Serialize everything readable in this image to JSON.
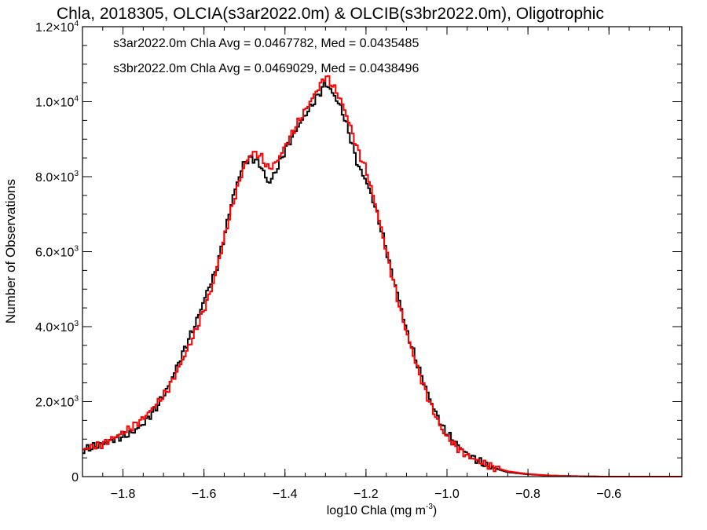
{
  "chart_data": {
    "type": "line",
    "title": "Chla, 2018305, OLCIA(s3ar2022.0m) & OLCIB(s3br2022.0m), Oligotrophic",
    "xlabel": {
      "main": "log10 Chla (mg m",
      "sup": "-3",
      "tail": ")"
    },
    "ylabel": "Number of Observations",
    "xlim": [
      -1.9,
      -0.42
    ],
    "ylim": [
      0,
      12000
    ],
    "x_ticks": [
      {
        "value": -1.8,
        "label": "−1.8"
      },
      {
        "value": -1.6,
        "label": "−1.6"
      },
      {
        "value": -1.4,
        "label": "−1.4"
      },
      {
        "value": -1.2,
        "label": "−1.2"
      },
      {
        "value": -1.0,
        "label": "−1.0"
      },
      {
        "value": -0.8,
        "label": "−0.8"
      },
      {
        "value": -0.6,
        "label": "−0.6"
      }
    ],
    "y_ticks": [
      {
        "value": 0,
        "label": "0",
        "sup": ""
      },
      {
        "value": 2000,
        "label": "2.0×10",
        "sup": "3"
      },
      {
        "value": 4000,
        "label": "4.0×10",
        "sup": "3"
      },
      {
        "value": 6000,
        "label": "6.0×10",
        "sup": "3"
      },
      {
        "value": 8000,
        "label": "8.0×10",
        "sup": "3"
      },
      {
        "value": 10000,
        "label": "1.0×10",
        "sup": "4"
      },
      {
        "value": 12000,
        "label": "1.2×10",
        "sup": "4"
      }
    ],
    "grid": false,
    "series": [
      {
        "name": "s3ar2022.0m",
        "color": "#000000",
        "legend_text": "s3ar2022.0m Chla Avg = 0.0467782, Med = 0.0435485",
        "points": [
          [
            -1.9,
            700
          ],
          [
            -1.85,
            880
          ],
          [
            -1.82,
            1000
          ],
          [
            -1.78,
            1150
          ],
          [
            -1.75,
            1400
          ],
          [
            -1.72,
            1800
          ],
          [
            -1.69,
            2350
          ],
          [
            -1.66,
            3100
          ],
          [
            -1.64,
            3600
          ],
          [
            -1.62,
            4100
          ],
          [
            -1.6,
            4700
          ],
          [
            -1.59,
            5000
          ],
          [
            -1.57,
            5500
          ],
          [
            -1.55,
            6400
          ],
          [
            -1.53,
            7400
          ],
          [
            -1.51,
            8100
          ],
          [
            -1.5,
            8400
          ],
          [
            -1.48,
            8500
          ],
          [
            -1.46,
            8300
          ],
          [
            -1.44,
            7800
          ],
          [
            -1.42,
            8200
          ],
          [
            -1.4,
            8700
          ],
          [
            -1.37,
            9300
          ],
          [
            -1.34,
            9800
          ],
          [
            -1.31,
            10300
          ],
          [
            -1.3,
            10500
          ],
          [
            -1.28,
            10200
          ],
          [
            -1.26,
            9800
          ],
          [
            -1.24,
            9100
          ],
          [
            -1.22,
            8300
          ],
          [
            -1.2,
            7900
          ],
          [
            -1.18,
            7300
          ],
          [
            -1.16,
            6500
          ],
          [
            -1.14,
            5600
          ],
          [
            -1.12,
            4800
          ],
          [
            -1.1,
            3900
          ],
          [
            -1.07,
            2900
          ],
          [
            -1.04,
            2000
          ],
          [
            -1.01,
            1300
          ],
          [
            -0.98,
            900
          ],
          [
            -0.95,
            600
          ],
          [
            -0.9,
            280
          ],
          [
            -0.85,
            120
          ],
          [
            -0.8,
            60
          ],
          [
            -0.75,
            30
          ],
          [
            -0.7,
            15
          ],
          [
            -0.62,
            0
          ],
          [
            -0.42,
            0
          ]
        ]
      },
      {
        "name": "s3br2022.0m",
        "color": "#ff0000",
        "legend_text": "s3br2022.0m Chla Avg = 0.0469029, Med = 0.0438496",
        "points": [
          [
            -1.9,
            720
          ],
          [
            -1.85,
            870
          ],
          [
            -1.82,
            1050
          ],
          [
            -1.78,
            1300
          ],
          [
            -1.75,
            1550
          ],
          [
            -1.72,
            1900
          ],
          [
            -1.69,
            2300
          ],
          [
            -1.66,
            2950
          ],
          [
            -1.64,
            3400
          ],
          [
            -1.62,
            3900
          ],
          [
            -1.6,
            4450
          ],
          [
            -1.58,
            5050
          ],
          [
            -1.56,
            5900
          ],
          [
            -1.54,
            6800
          ],
          [
            -1.52,
            7600
          ],
          [
            -1.5,
            8300
          ],
          [
            -1.48,
            8650
          ],
          [
            -1.46,
            8550
          ],
          [
            -1.44,
            8200
          ],
          [
            -1.42,
            8400
          ],
          [
            -1.4,
            8800
          ],
          [
            -1.37,
            9400
          ],
          [
            -1.34,
            9950
          ],
          [
            -1.31,
            10500
          ],
          [
            -1.3,
            10700
          ],
          [
            -1.28,
            10400
          ],
          [
            -1.26,
            10000
          ],
          [
            -1.24,
            9400
          ],
          [
            -1.22,
            8700
          ],
          [
            -1.2,
            8200
          ],
          [
            -1.18,
            7400
          ],
          [
            -1.16,
            6500
          ],
          [
            -1.14,
            5550
          ],
          [
            -1.12,
            4650
          ],
          [
            -1.1,
            3850
          ],
          [
            -1.07,
            2800
          ],
          [
            -1.04,
            1900
          ],
          [
            -1.01,
            1200
          ],
          [
            -0.98,
            820
          ],
          [
            -0.95,
            560
          ],
          [
            -0.9,
            300
          ],
          [
            -0.85,
            140
          ],
          [
            -0.8,
            70
          ],
          [
            -0.75,
            30
          ],
          [
            -0.7,
            15
          ],
          [
            -0.62,
            0
          ],
          [
            -0.42,
            0
          ]
        ]
      }
    ]
  }
}
